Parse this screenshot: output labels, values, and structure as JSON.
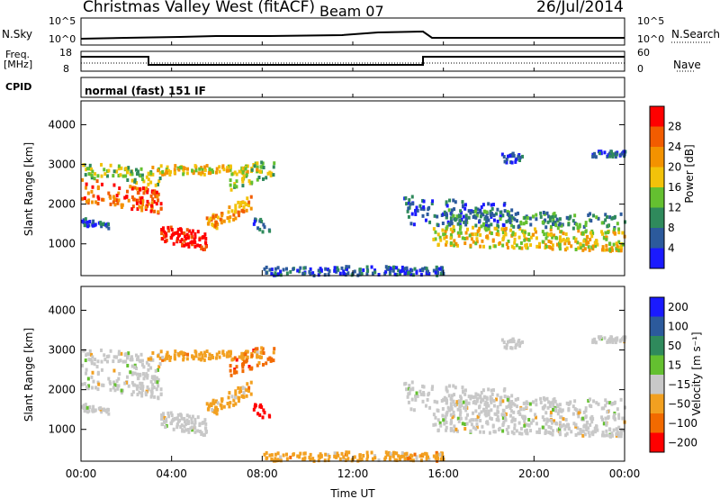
{
  "header": {
    "station": "Christmas Valley West (fitACF)",
    "beam": "Beam 07",
    "date": "26/Jul/2014"
  },
  "noise_panel": {
    "left_label": "N.Sky",
    "right_label": "N.Search",
    "left_ticks": [
      "10^5",
      "10^0"
    ],
    "right_ticks": [
      "10^5",
      "10^0"
    ]
  },
  "freq_panel": {
    "left_label_1": "Freq.",
    "left_label_2": "[MHz]",
    "left_ticks": [
      "18",
      "8"
    ],
    "right_label": "Nave",
    "right_ticks": [
      "60",
      "0"
    ]
  },
  "cpid": {
    "label": "CPID",
    "text": "normal (fast) 151 IF"
  },
  "colors": {
    "power": [
      "#1a1aff",
      "#2c5a9c",
      "#2f8a5c",
      "#64c030",
      "#f2c20a",
      "#f39200",
      "#f25c00",
      "#ff0000"
    ],
    "velocity": [
      "#1a1aff",
      "#2c5a9c",
      "#2f8a5c",
      "#64c030",
      "#c8c8c8",
      "#f2a020",
      "#f26a00",
      "#ff0000"
    ]
  },
  "chart_data": [
    {
      "type": "heatmap",
      "ylabel": "Slant Range [km]",
      "y_ticks": [
        1000,
        2000,
        3000,
        4000
      ],
      "ylim": [
        200,
        4600
      ],
      "colorbar": {
        "label": "Power [dB]",
        "ticks": [
          4,
          8,
          12,
          16,
          20,
          24,
          28
        ],
        "range": [
          0,
          32
        ]
      }
    },
    {
      "type": "heatmap",
      "ylabel": "Slant Range [km]",
      "y_ticks": [
        1000,
        2000,
        3000,
        4000
      ],
      "ylim": [
        200,
        4600
      ],
      "colorbar": {
        "label": "Velocity [m s⁻¹]",
        "ticks": [
          "200",
          "100",
          "50",
          "15",
          "−15",
          "−50",
          "−100",
          "−200"
        ]
      }
    }
  ],
  "time_axis": {
    "label": "Time UT",
    "ticks": [
      "00:00",
      "04:00",
      "08:00",
      "12:00",
      "16:00",
      "20:00",
      "00:00"
    ]
  }
}
